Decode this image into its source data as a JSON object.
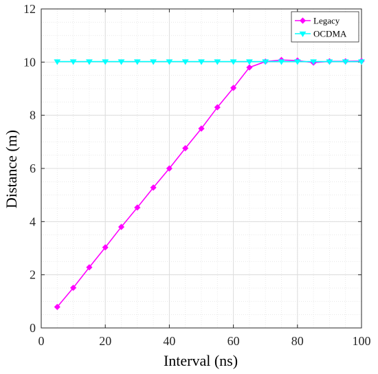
{
  "chart_data": {
    "type": "line",
    "title": "",
    "xlabel": "Interval (ns)",
    "ylabel": "Distance (m)",
    "xlim": [
      0,
      100
    ],
    "ylim": [
      0,
      12
    ],
    "xticks": [
      0,
      20,
      40,
      60,
      80,
      100
    ],
    "yticks": [
      0,
      2,
      4,
      6,
      8,
      10,
      12
    ],
    "grid": true,
    "minor_grid": true,
    "legend_position": "top-right",
    "x": [
      5,
      10,
      15,
      20,
      25,
      30,
      35,
      40,
      45,
      50,
      55,
      60,
      65,
      70,
      75,
      80,
      85,
      90,
      95,
      100
    ],
    "series": [
      {
        "name": "Legacy",
        "color": "#ff00ff",
        "marker": "diamond",
        "values": [
          0.79,
          1.51,
          2.28,
          3.03,
          3.8,
          4.53,
          5.28,
          6.0,
          6.76,
          7.5,
          8.3,
          9.03,
          9.8,
          10.02,
          10.08,
          10.06,
          9.98,
          10.03,
          10.03,
          10.04
        ]
      },
      {
        "name": "OCDMA",
        "color": "#00ffff",
        "marker": "triangle-down",
        "values": [
          10.02,
          10.02,
          10.02,
          10.02,
          10.02,
          10.02,
          10.02,
          10.02,
          10.02,
          10.02,
          10.02,
          10.02,
          10.02,
          10.02,
          10.02,
          10.02,
          10.02,
          10.02,
          10.02,
          10.02
        ]
      }
    ]
  }
}
